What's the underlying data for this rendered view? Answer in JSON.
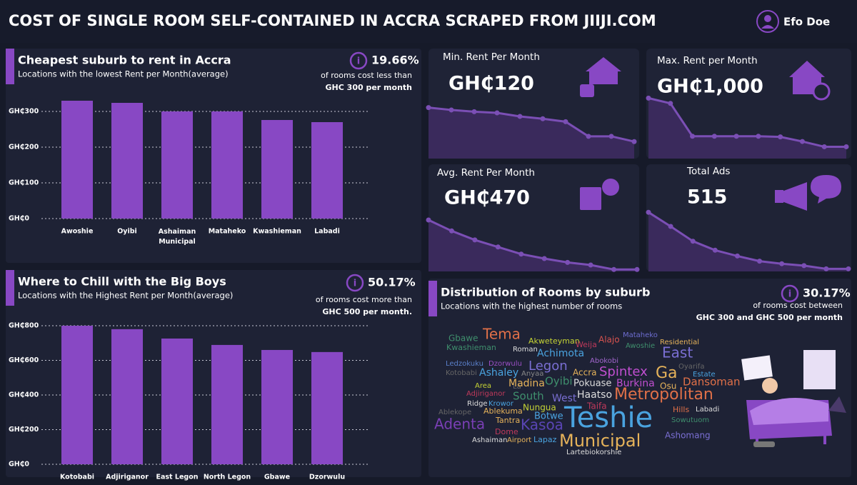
{
  "header": {
    "title": "COST OF SINGLE ROOM SELF-CONTAINED IN ACCRA SCRAPED FROM JIIJI.COM",
    "author": "Efo Doe"
  },
  "chart_data": [
    {
      "type": "bar",
      "title": "Cheapest suburb to rent in Accra",
      "subtitle": "Locations with the lowest Rent per Month(average)",
      "stat": "19.66%",
      "stat_text": [
        "of rooms cost less than",
        "GHC 300 per month"
      ],
      "categories": [
        "Awoshie",
        "Oyibi",
        "Ashaiman Municipal",
        "Mataheko",
        "Kwashieman",
        "Labadi"
      ],
      "values": [
        330,
        324,
        300,
        300,
        276,
        270
      ],
      "color": "#8848c4",
      "ylim": [
        0,
        330
      ],
      "yticks": [
        {
          "value": 0,
          "label": "GH₵0"
        },
        {
          "value": 100,
          "label": "GH₵100"
        },
        {
          "value": 200,
          "label": "GH₵200"
        },
        {
          "value": 300,
          "label": "GH₵300"
        }
      ],
      "grid": true
    },
    {
      "type": "bar",
      "title": "Where to Chill with the Big Boys",
      "subtitle": "Locations with the Highest Rent per Month(average)",
      "stat": "50.17%",
      "stat_text": [
        "of rooms cost more than",
        "GHC 500 per month."
      ],
      "categories": [
        "Kotobabi",
        "Adjiriganor",
        "East Legon",
        "North Legon",
        "Gbawe",
        "Dzorwulu"
      ],
      "values": [
        800,
        780,
        726,
        689,
        660,
        648
      ],
      "color": "#8848c4",
      "ylim": [
        0,
        800
      ],
      "yticks": [
        {
          "value": 0,
          "label": "GH₵0"
        },
        {
          "value": 200,
          "label": "GH₵200"
        },
        {
          "value": 400,
          "label": "GH₵400"
        },
        {
          "value": 600,
          "label": "GH₵600"
        },
        {
          "value": 800,
          "label": "GH₵800"
        }
      ],
      "grid": true
    },
    {
      "type": "line",
      "title": "Min. Rent Per Month",
      "kpi": "GH₵120",
      "values": [
        87,
        83,
        80,
        78,
        72,
        68,
        63,
        38,
        38,
        29
      ],
      "ylim": [
        0,
        100
      ],
      "color": "#7b4fb5"
    },
    {
      "type": "line",
      "title": "Max. Rent per Month",
      "kpi": "GH₵1,000",
      "values": [
        92,
        84,
        34,
        34,
        34,
        34,
        33,
        26,
        18,
        18
      ],
      "ylim": [
        0,
        100
      ],
      "color": "#7b4fb5"
    },
    {
      "type": "line",
      "title": "Avg. Rent Per Month",
      "kpi": "GH₵470",
      "values": [
        80,
        63,
        49,
        38,
        27,
        20,
        14,
        10,
        3,
        3
      ],
      "ylim": [
        0,
        100
      ],
      "color": "#7b4fb5"
    },
    {
      "type": "line",
      "title": "Total Ads",
      "kpi": "515",
      "values": [
        92,
        70,
        47,
        33,
        24,
        16,
        12,
        9,
        4,
        4
      ],
      "ylim": [
        0,
        100
      ],
      "color": "#7b4fb5"
    }
  ],
  "word_cloud": {
    "title": "Distribution of Rooms by suburb",
    "subtitle": "Locations with the highest number of rooms",
    "stat": "30.17%",
    "stat_text": [
      "of rooms cost between",
      "GHC 300  and GHC 500 per month"
    ],
    "words": [
      "Gbawe",
      "Tema",
      "Akweteyman",
      "Alajo",
      "Mataheko",
      "Residential",
      "Kwashieman",
      "Roman",
      "Weija",
      "Awoshie",
      "Achimota",
      "East",
      "Abokobi",
      "Ledzokuku",
      "Dzorwulu",
      "Legon",
      "Oyarifa",
      "Kotobabi",
      "Ashaley",
      "Anyaa",
      "Spintex",
      "Ga",
      "Estate",
      "Oyibi",
      "Accra",
      "Dansoman",
      "Area",
      "La",
      "Madina",
      "Pokuase",
      "Burkina",
      "Osu",
      "Adjiriganor",
      "South",
      "West",
      "Haatso",
      "Metropolitan",
      "Ridge",
      "Krowor",
      "Taifa",
      "Nungua",
      "Ablekuma",
      "Ablekope",
      "Hills",
      "Labadi",
      "Teshie",
      "Botwe",
      "Sowutuom",
      "Tantra",
      "Adenta",
      "Kasoa",
      "Dome",
      "Municipal",
      "Ashomang",
      "Ashaiman",
      "Airport",
      "Lapaz",
      "Lartebiokorshie"
    ]
  }
}
